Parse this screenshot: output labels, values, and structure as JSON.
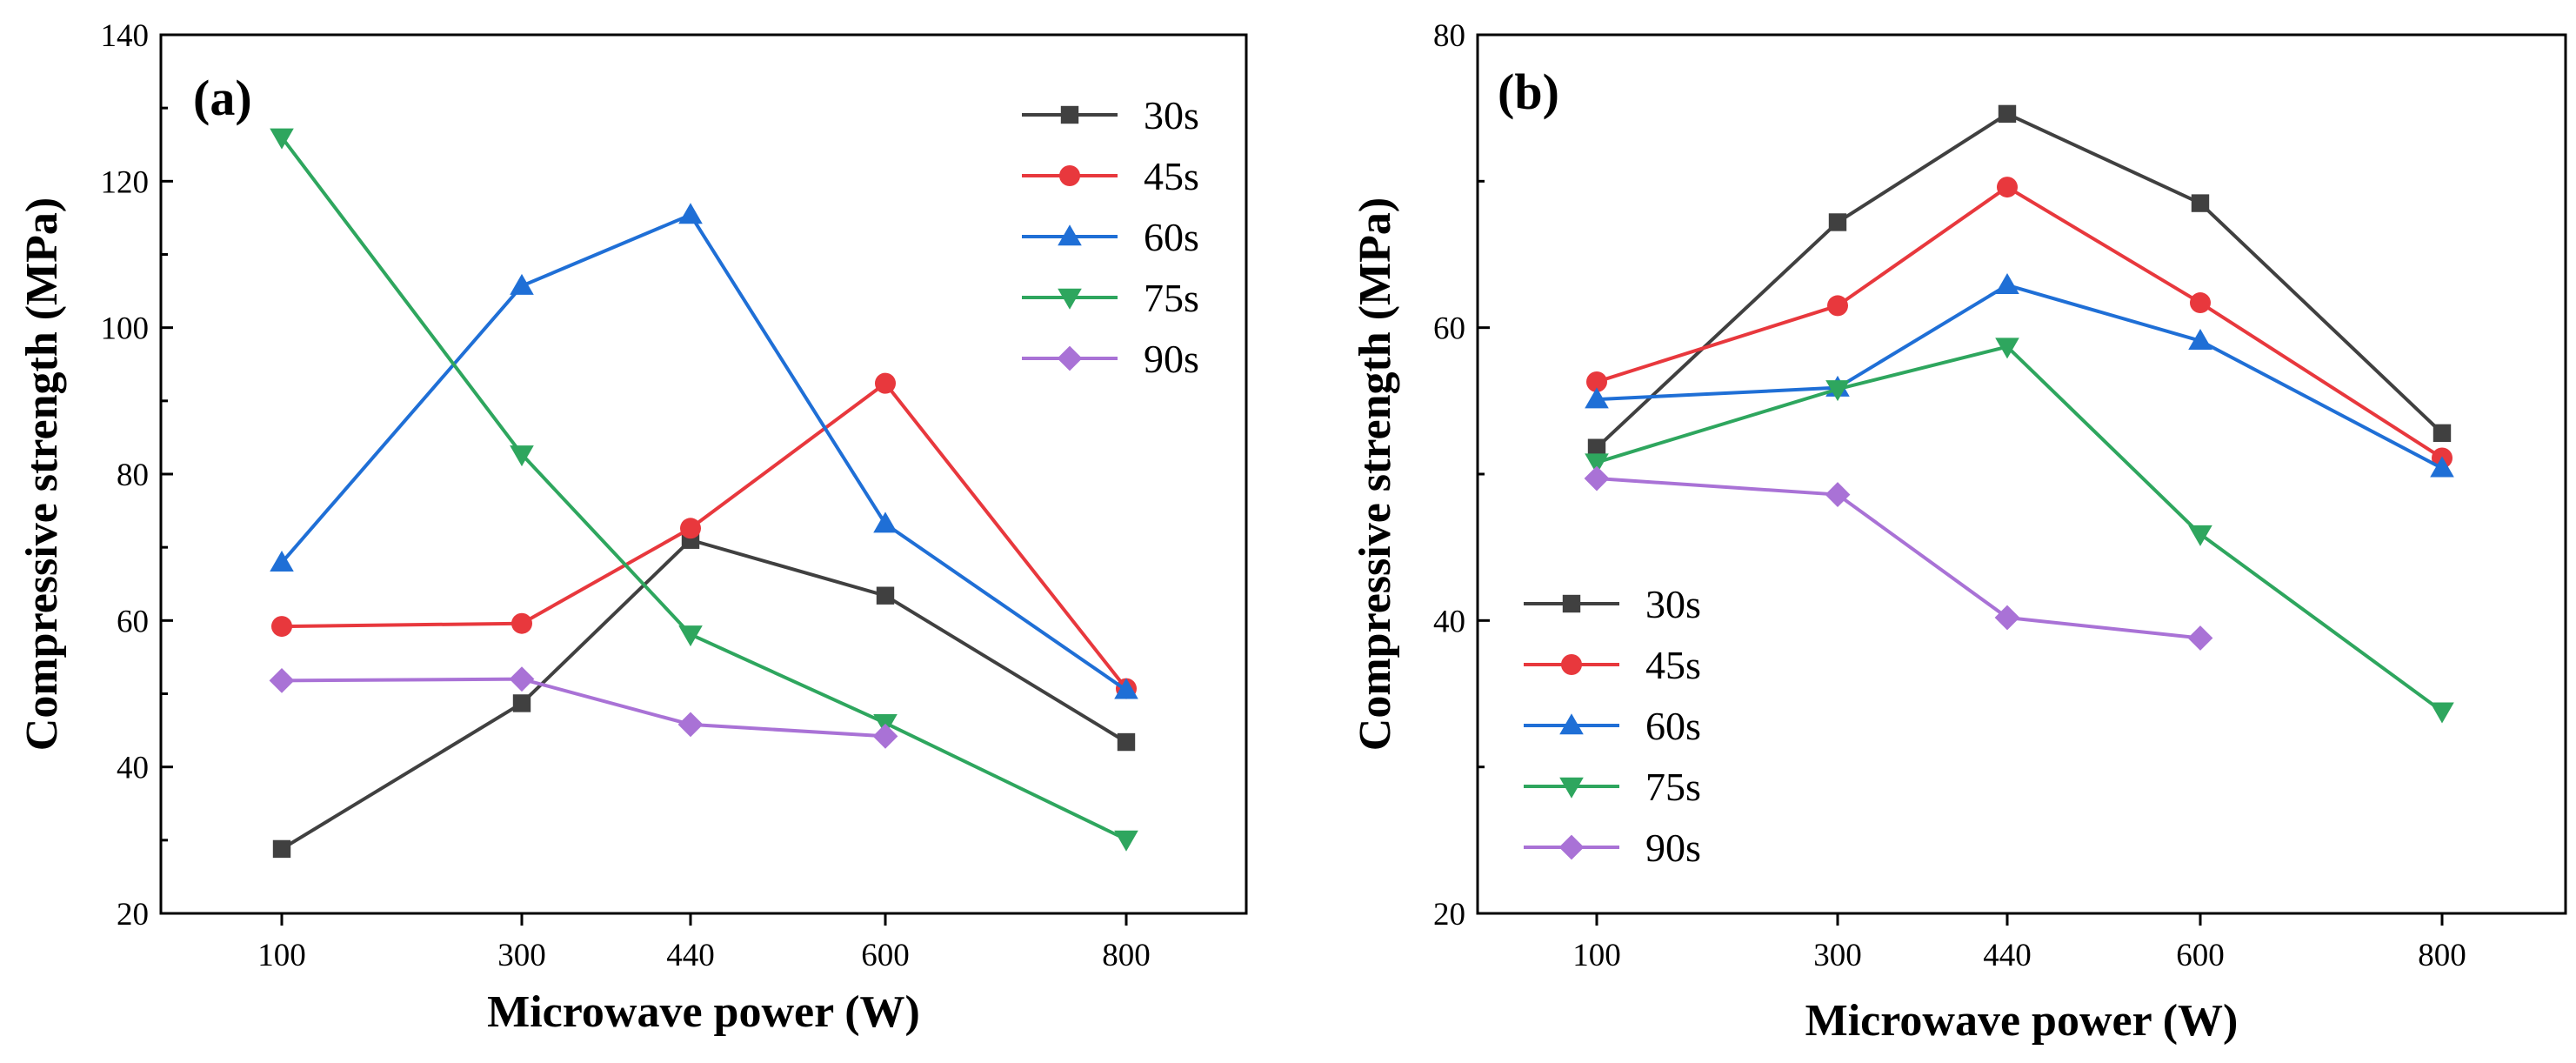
{
  "chart_data": [
    {
      "type": "line",
      "panel_label": "(a)",
      "xlabel": "Microwave power (W)",
      "ylabel": "Compressive strength (MPa)",
      "x": [
        100,
        300,
        440,
        600,
        800
      ],
      "x_ticks": [
        "100",
        "300",
        "440",
        "600",
        "800"
      ],
      "ylim": [
        20,
        140
      ],
      "y_ticks": [
        20,
        40,
        60,
        80,
        100,
        120,
        140
      ],
      "legend_position": "top-right",
      "grid": false,
      "series": [
        {
          "name": "30s",
          "color": "#404040",
          "marker": "square",
          "values": [
            28.8,
            48.7,
            71.0,
            63.4,
            43.4
          ]
        },
        {
          "name": "45s",
          "color": "#e8383d",
          "marker": "circle",
          "values": [
            59.2,
            59.6,
            72.6,
            92.4,
            50.7
          ]
        },
        {
          "name": "60s",
          "color": "#1f6fd6",
          "marker": "triangle-up",
          "values": [
            67.9,
            105.7,
            115.4,
            73.2,
            50.5
          ]
        },
        {
          "name": "75s",
          "color": "#2ea65e",
          "marker": "triangle-down",
          "values": [
            126.0,
            82.7,
            58.1,
            46.0,
            30.1
          ]
        },
        {
          "name": "90s",
          "color": "#a972d6",
          "marker": "diamond",
          "values": [
            51.8,
            52.0,
            45.8,
            44.2,
            null
          ]
        }
      ]
    },
    {
      "type": "line",
      "panel_label": "(b)",
      "xlabel": "Microwave power (W)",
      "ylabel": "Compressive strength (MPa)",
      "x": [
        100,
        300,
        440,
        600,
        800
      ],
      "x_ticks": [
        "100",
        "300",
        "440",
        "600",
        "800"
      ],
      "ylim": [
        20,
        80
      ],
      "y_ticks": [
        20,
        40,
        60,
        80
      ],
      "legend_position": "bottom-left",
      "grid": false,
      "series": [
        {
          "name": "30s",
          "color": "#404040",
          "marker": "square",
          "values": [
            51.8,
            67.2,
            74.6,
            68.5,
            52.8
          ]
        },
        {
          "name": "45s",
          "color": "#e8383d",
          "marker": "circle",
          "values": [
            56.3,
            61.5,
            69.6,
            61.7,
            51.1
          ]
        },
        {
          "name": "60s",
          "color": "#1f6fd6",
          "marker": "triangle-up",
          "values": [
            55.1,
            55.9,
            62.9,
            59.1,
            50.4
          ]
        },
        {
          "name": "75s",
          "color": "#2ea65e",
          "marker": "triangle-down",
          "values": [
            50.8,
            55.8,
            58.7,
            45.9,
            33.8
          ]
        },
        {
          "name": "90s",
          "color": "#a972d6",
          "marker": "diamond",
          "values": [
            49.7,
            48.6,
            40.2,
            38.8,
            null
          ]
        }
      ]
    }
  ]
}
